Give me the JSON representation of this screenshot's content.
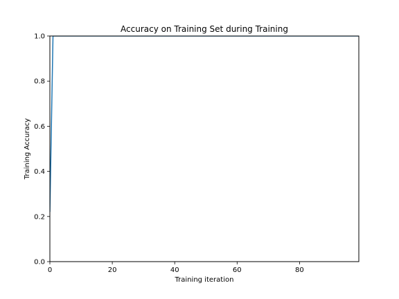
{
  "chart_data": {
    "type": "line",
    "title": "Accuracy on Training Set during Training",
    "xlabel": "Training iteration",
    "ylabel": "Training Accuracy",
    "xlim": [
      0,
      99
    ],
    "ylim": [
      0.0,
      1.0
    ],
    "xticks": [
      0,
      20,
      40,
      60,
      80
    ],
    "yticks": [
      0.0,
      0.2,
      0.4,
      0.6,
      0.8,
      1.0
    ],
    "xtick_labels": [
      "0",
      "20",
      "40",
      "60",
      "80"
    ],
    "ytick_labels": [
      "0.0",
      "0.2",
      "0.4",
      "0.6",
      "0.8",
      "1.0"
    ],
    "grid": false,
    "series": [
      {
        "color": "#1f77b4",
        "x": [
          0,
          1,
          2,
          3,
          4,
          5,
          6,
          7,
          8,
          9,
          10,
          11,
          12,
          13,
          14,
          15,
          16,
          17,
          18,
          19,
          20,
          21,
          22,
          23,
          24,
          25,
          26,
          27,
          28,
          29,
          30,
          31,
          32,
          33,
          34,
          35,
          36,
          37,
          38,
          39,
          40,
          41,
          42,
          43,
          44,
          45,
          46,
          47,
          48,
          49,
          50,
          51,
          52,
          53,
          54,
          55,
          56,
          57,
          58,
          59,
          60,
          61,
          62,
          63,
          64,
          65,
          66,
          67,
          68,
          69,
          70,
          71,
          72,
          73,
          74,
          75,
          76,
          77,
          78,
          79,
          80,
          81,
          82,
          83,
          84,
          85,
          86,
          87,
          88,
          89,
          90,
          91,
          92,
          93,
          94,
          95,
          96,
          97,
          98,
          99
        ],
        "y": [
          0.22,
          1.0,
          1.0,
          1.0,
          1.0,
          1.0,
          1.0,
          1.0,
          1.0,
          1.0,
          1.0,
          1.0,
          1.0,
          1.0,
          1.0,
          1.0,
          1.0,
          1.0,
          1.0,
          1.0,
          1.0,
          1.0,
          1.0,
          1.0,
          1.0,
          1.0,
          1.0,
          1.0,
          1.0,
          1.0,
          1.0,
          1.0,
          1.0,
          1.0,
          1.0,
          1.0,
          1.0,
          1.0,
          1.0,
          1.0,
          1.0,
          1.0,
          1.0,
          1.0,
          1.0,
          1.0,
          1.0,
          1.0,
          1.0,
          1.0,
          1.0,
          1.0,
          1.0,
          1.0,
          1.0,
          1.0,
          1.0,
          1.0,
          1.0,
          1.0,
          1.0,
          1.0,
          1.0,
          1.0,
          1.0,
          1.0,
          1.0,
          1.0,
          1.0,
          1.0,
          1.0,
          1.0,
          1.0,
          1.0,
          1.0,
          1.0,
          1.0,
          1.0,
          1.0,
          1.0,
          1.0,
          1.0,
          1.0,
          1.0,
          1.0,
          1.0,
          1.0,
          1.0,
          1.0,
          1.0,
          1.0,
          1.0,
          1.0,
          1.0,
          1.0,
          1.0,
          1.0,
          1.0,
          1.0,
          1.0
        ]
      }
    ]
  }
}
